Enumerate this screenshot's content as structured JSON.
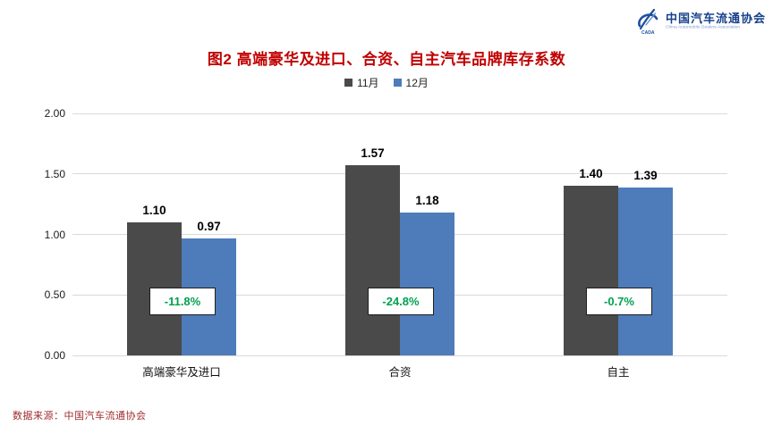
{
  "header": {
    "logo": {
      "icon": "cada-swoosh-logo",
      "org_zh": "中国汽车流通协会",
      "org_en": "China Automobile Dealers Association",
      "color_primary": "#16418c",
      "color_secondary": "#7b9cd0"
    }
  },
  "chart_data": {
    "type": "bar",
    "title": "图2  高端豪华及进口、合资、自主汽车品牌库存系数",
    "title_color": "#c00000",
    "categories": [
      "高端豪华及进口",
      "合资",
      "自主"
    ],
    "series": [
      {
        "name": "11月",
        "color": "#4a4a4a",
        "values": [
          1.1,
          1.57,
          1.4
        ],
        "value_labels": [
          "1.10",
          "1.57",
          "1.40"
        ]
      },
      {
        "name": "12月",
        "color": "#4e7cba",
        "values": [
          0.97,
          1.18,
          1.39
        ],
        "value_labels": [
          "0.97",
          "1.18",
          "1.39"
        ]
      }
    ],
    "annotations": {
      "labels": [
        "-11.8%",
        "-24.8%",
        "-0.7%"
      ],
      "color": "#00a14e"
    },
    "y_ticks": [
      "2.00",
      "1.50",
      "1.00",
      "0.50",
      "0.00"
    ],
    "ylim": [
      0,
      2.0
    ],
    "grid": true,
    "gridline_color": "#d9d9d9",
    "legend_position": "top"
  },
  "footer": {
    "source": "数据来源：中国汽车流通协会",
    "color": "#a02c2c"
  }
}
